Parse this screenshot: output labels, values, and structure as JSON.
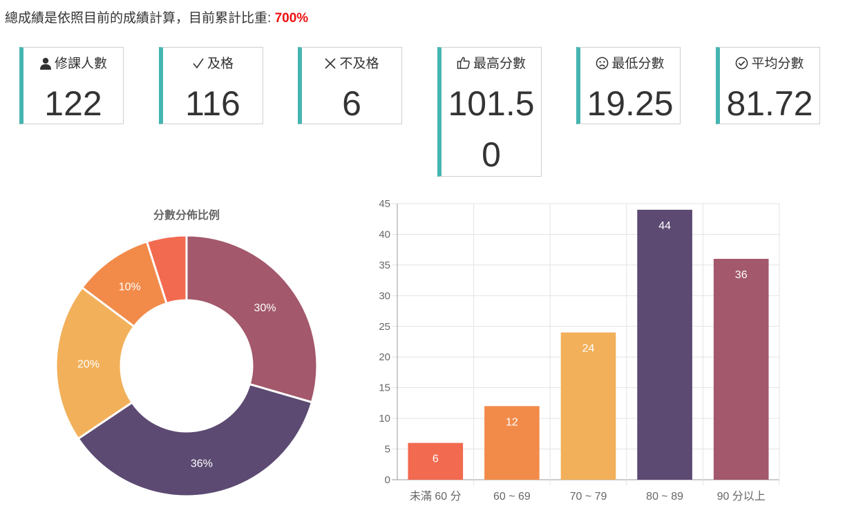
{
  "header": {
    "text": "總成績是依照目前的成績計算，目前累計比重: ",
    "percent": "700%"
  },
  "stats": [
    {
      "label": "修課人數",
      "value": "122",
      "icon": "user-icon"
    },
    {
      "label": "及格",
      "value": "116",
      "icon": "check-icon"
    },
    {
      "label": "不及格",
      "value": "6",
      "icon": "x-icon"
    },
    {
      "label": "最高分數",
      "value": "101.50",
      "icon": "thumbs-up-icon"
    },
    {
      "label": "最低分數",
      "value": "19.25",
      "icon": "frown-icon"
    },
    {
      "label": "平均分數",
      "value": "81.72",
      "icon": "check-circle-icon"
    }
  ],
  "colors": {
    "accent": "#45b5b1",
    "highlight": "#ee1111",
    "bins": [
      "#f26a50",
      "#f28b4a",
      "#f2b05a",
      "#5c4a72",
      "#a3586b"
    ]
  },
  "chart_data": [
    {
      "type": "pie",
      "title": "分數分佈比例",
      "donut": true,
      "labels": [
        "90 分以上",
        "80 ~ 89",
        "70 ~ 79",
        "60 ~ 69",
        "未滿 60 分"
      ],
      "values": [
        36,
        44,
        24,
        12,
        6
      ],
      "data_labels": [
        "30%",
        "36%",
        "20%",
        "10%",
        ""
      ],
      "colors": [
        "#a3586b",
        "#5c4a72",
        "#f2b05a",
        "#f28b4a",
        "#f26a50"
      ]
    },
    {
      "type": "bar",
      "categories": [
        "未滿 60 分",
        "60 ~ 69",
        "70 ~ 79",
        "80 ~ 89",
        "90 分以上"
      ],
      "values": [
        6,
        12,
        24,
        44,
        36
      ],
      "colors": [
        "#f26a50",
        "#f28b4a",
        "#f2b05a",
        "#5c4a72",
        "#a3586b"
      ],
      "ylim": [
        0,
        45
      ],
      "yticks": [
        0,
        5,
        10,
        15,
        20,
        25,
        30,
        35,
        40,
        45
      ],
      "grid": true
    }
  ]
}
